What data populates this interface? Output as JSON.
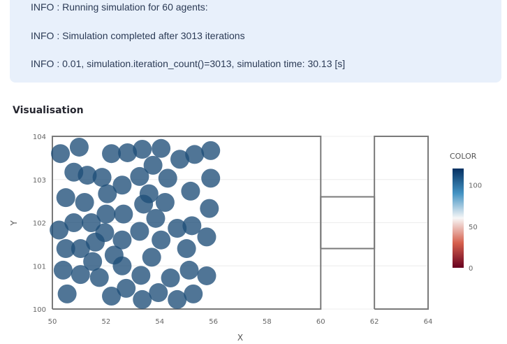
{
  "log": {
    "lines": [
      "INFO : Running simulation for 60 agents:",
      "INFO : Simulation completed after 3013 iterations",
      "INFO : 0.01, simulation.iteration_count()=3013, simulation time: 30.13 [s]"
    ]
  },
  "section": {
    "title": "Visualisation"
  },
  "chart_data": {
    "type": "scatter",
    "xlabel": "X",
    "ylabel": "Y",
    "xlim": [
      50,
      64
    ],
    "ylim": [
      100,
      104
    ],
    "x_ticks": [
      "50",
      "52",
      "54",
      "56",
      "58",
      "60",
      "62",
      "64"
    ],
    "y_ticks": [
      "100",
      "101",
      "102",
      "103",
      "104"
    ],
    "grid": true,
    "marker_color": "#1f4e79",
    "geometry_outline": [
      [
        [
          50,
          100
        ],
        [
          60,
          100
        ],
        [
          60,
          104
        ],
        [
          50,
          104
        ],
        [
          50,
          100
        ]
      ],
      [
        [
          60,
          101.4
        ],
        [
          62,
          101.4
        ],
        [
          62,
          102.6
        ],
        [
          60,
          102.6
        ],
        [
          60,
          101.4
        ]
      ],
      [
        [
          62,
          100
        ],
        [
          64,
          100
        ],
        [
          64,
          104
        ],
        [
          62,
          104
        ],
        [
          62,
          100
        ]
      ]
    ],
    "colorbar": {
      "title": "COLOR",
      "ticks": [
        "0",
        "50",
        "100"
      ],
      "range": [
        0,
        120
      ],
      "colors": [
        "#67001f",
        "#d6604d",
        "#f7f7f7",
        "#4393c3",
        "#053061"
      ]
    },
    "points": [
      [
        50.3,
        103.6
      ],
      [
        51.0,
        103.75
      ],
      [
        52.2,
        103.6
      ],
      [
        52.8,
        103.62
      ],
      [
        53.35,
        103.7
      ],
      [
        54.05,
        103.72
      ],
      [
        54.75,
        103.47
      ],
      [
        55.3,
        103.58
      ],
      [
        55.9,
        103.67
      ],
      [
        50.8,
        103.17
      ],
      [
        51.3,
        103.1
      ],
      [
        51.85,
        103.05
      ],
      [
        53.25,
        103.07
      ],
      [
        53.75,
        103.33
      ],
      [
        54.3,
        103.03
      ],
      [
        55.9,
        103.03
      ],
      [
        52.05,
        102.67
      ],
      [
        52.6,
        102.87
      ],
      [
        53.6,
        102.67
      ],
      [
        55.15,
        102.73
      ],
      [
        50.5,
        102.58
      ],
      [
        51.2,
        102.47
      ],
      [
        52.0,
        102.2
      ],
      [
        52.65,
        102.2
      ],
      [
        53.4,
        102.43
      ],
      [
        54.2,
        102.47
      ],
      [
        55.85,
        102.33
      ],
      [
        50.25,
        101.83
      ],
      [
        50.8,
        102.0
      ],
      [
        51.45,
        102.0
      ],
      [
        51.95,
        101.77
      ],
      [
        52.6,
        101.6
      ],
      [
        53.25,
        101.8
      ],
      [
        53.85,
        102.1
      ],
      [
        54.65,
        101.87
      ],
      [
        55.2,
        101.93
      ],
      [
        55.75,
        101.67
      ],
      [
        50.5,
        101.4
      ],
      [
        51.05,
        101.4
      ],
      [
        51.6,
        101.55
      ],
      [
        52.3,
        101.25
      ],
      [
        54.05,
        101.6
      ],
      [
        55.0,
        101.4
      ],
      [
        51.5,
        101.1
      ],
      [
        52.6,
        101.0
      ],
      [
        53.7,
        101.2
      ],
      [
        50.4,
        100.9
      ],
      [
        51.05,
        100.8
      ],
      [
        51.75,
        100.73
      ],
      [
        53.3,
        100.78
      ],
      [
        54.4,
        100.72
      ],
      [
        55.1,
        100.9
      ],
      [
        55.75,
        100.77
      ],
      [
        50.55,
        100.35
      ],
      [
        52.2,
        100.3
      ],
      [
        52.75,
        100.48
      ],
      [
        53.35,
        100.22
      ],
      [
        53.95,
        100.38
      ],
      [
        54.65,
        100.22
      ],
      [
        55.25,
        100.35
      ]
    ]
  }
}
